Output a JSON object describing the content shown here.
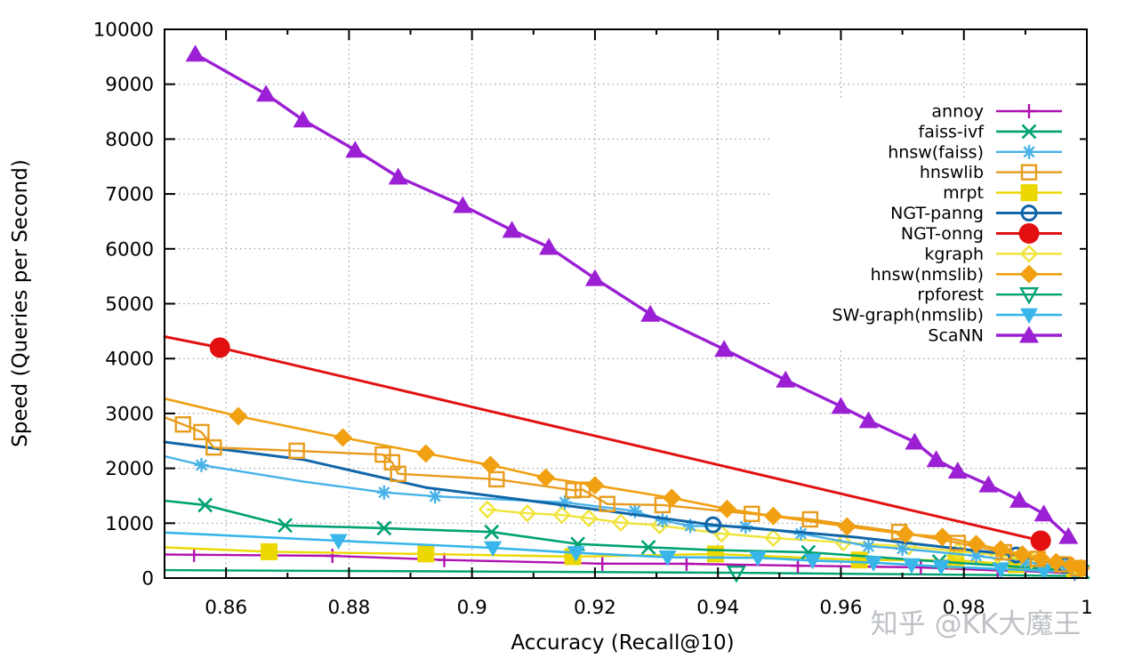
{
  "figure": {
    "xlabel": "Accuracy (Recall@10)",
    "ylabel": "Speed (Queries per Second)",
    "xlim": [
      0.85,
      1.0
    ],
    "ylim": [
      0,
      10000
    ],
    "x_ticks": [
      0.86,
      0.88,
      0.9,
      0.92,
      0.94,
      0.96,
      0.98,
      1
    ],
    "x_tick_labels": [
      "0.86",
      "0.88",
      "0.9",
      "0.92",
      "0.94",
      "0.96",
      "0.98",
      "1"
    ],
    "x_minor_ticks": [
      0.87,
      0.89,
      0.91,
      0.93,
      0.95,
      0.97,
      0.99
    ],
    "y_ticks": [
      0,
      1000,
      2000,
      3000,
      4000,
      5000,
      6000,
      7000,
      8000,
      9000,
      10000
    ],
    "grid": true,
    "grid_color": "#8a8a8a",
    "legend_position": "inside-top-right"
  },
  "watermark": "知乎 @KK大魔王",
  "chart_data": {
    "type": "line",
    "title": "",
    "xlabel": "Accuracy (Recall@10)",
    "ylabel": "Speed (Queries per Second)",
    "xlim": [
      0.85,
      1.0
    ],
    "ylim": [
      0,
      10000
    ],
    "draw_order": [
      "rpforest",
      "annoy",
      "mrpt",
      "faiss-ivf",
      "SW-graph(nmslib)",
      "kgraph",
      "hnsw(faiss)",
      "NGT-panng",
      "hnswlib",
      "hnsw(nmslib)",
      "NGT-onng",
      "ScaNN"
    ],
    "series": [
      {
        "name": "annoy",
        "color": "#b012b0",
        "marker": "plus",
        "lw": 2.4,
        "markers_mode": "skip-first",
        "line": [
          [
            0.85,
            430
          ],
          [
            0.8548,
            425
          ],
          [
            0.8773,
            405
          ],
          [
            0.8955,
            330
          ],
          [
            0.9212,
            262
          ],
          [
            0.9349,
            260
          ],
          [
            0.953,
            225
          ],
          [
            0.973,
            195
          ],
          [
            0.9855,
            140
          ],
          [
            0.993,
            115
          ],
          [
            0.998,
            80
          ]
        ]
      },
      {
        "name": "faiss-ivf",
        "color": "#00a273",
        "marker": "x",
        "lw": 2.6,
        "markers_mode": "custom",
        "line": [
          [
            0.85,
            1410
          ],
          [
            0.8566,
            1330
          ],
          [
            0.8696,
            960
          ],
          [
            0.8857,
            910
          ],
          [
            0.9032,
            840
          ],
          [
            0.9172,
            620
          ],
          [
            0.9287,
            560
          ],
          [
            0.9392,
            510
          ],
          [
            0.9547,
            470
          ],
          [
            0.976,
            300
          ],
          [
            0.9895,
            200
          ],
          [
            0.9993,
            110
          ]
        ],
        "marker_points": [
          [
            0.8566,
            1330
          ],
          [
            0.8696,
            960
          ],
          [
            0.8857,
            910
          ],
          [
            0.9032,
            840
          ],
          [
            0.9172,
            620
          ],
          [
            0.9287,
            560
          ],
          [
            0.9547,
            470
          ],
          [
            0.976,
            300
          ],
          [
            0.9993,
            110
          ]
        ]
      },
      {
        "name": "hnsw(faiss)",
        "color": "#48b2e8",
        "marker": "asterisk",
        "lw": 2.4,
        "markers_mode": "custom",
        "line": [
          [
            0.85,
            2220
          ],
          [
            0.856,
            2060
          ],
          [
            0.8725,
            1760
          ],
          [
            0.8857,
            1560
          ],
          [
            0.894,
            1490
          ],
          [
            0.9151,
            1380
          ],
          [
            0.9265,
            1220
          ],
          [
            0.931,
            1050
          ],
          [
            0.9355,
            950
          ],
          [
            0.9445,
            940
          ],
          [
            0.9535,
            810
          ],
          [
            0.9645,
            580
          ],
          [
            0.97,
            535
          ],
          [
            0.982,
            405
          ],
          [
            0.99,
            290
          ],
          [
            0.9965,
            200
          ]
        ],
        "marker_points": [
          [
            0.856,
            2060
          ],
          [
            0.8857,
            1560
          ],
          [
            0.894,
            1490
          ],
          [
            0.9151,
            1380
          ],
          [
            0.9265,
            1220
          ],
          [
            0.931,
            1050
          ],
          [
            0.9355,
            950
          ],
          [
            0.9445,
            940
          ],
          [
            0.9535,
            810
          ],
          [
            0.9645,
            580
          ],
          [
            0.97,
            535
          ],
          [
            0.982,
            405
          ],
          [
            0.99,
            290
          ],
          [
            0.9965,
            200
          ]
        ]
      },
      {
        "name": "hnswlib",
        "color": "#e89c1c",
        "marker": "square-open",
        "lw": 2.4,
        "markers_mode": "skip-first",
        "line": [
          [
            0.85,
            2930
          ],
          [
            0.853,
            2800
          ],
          [
            0.856,
            2660
          ],
          [
            0.858,
            2380
          ],
          [
            0.8715,
            2320
          ],
          [
            0.8855,
            2250
          ],
          [
            0.887,
            2110
          ],
          [
            0.888,
            1900
          ],
          [
            0.904,
            1800
          ],
          [
            0.9165,
            1600
          ],
          [
            0.918,
            1610
          ],
          [
            0.922,
            1350
          ],
          [
            0.931,
            1330
          ],
          [
            0.9455,
            1170
          ],
          [
            0.955,
            1070
          ],
          [
            0.9695,
            840
          ],
          [
            0.979,
            640
          ],
          [
            0.9865,
            470
          ],
          [
            0.992,
            350
          ],
          [
            0.996,
            250
          ],
          [
            0.9985,
            180
          ]
        ]
      },
      {
        "name": "mrpt",
        "color": "#ecd800",
        "marker": "square-filled",
        "lw": 2.4,
        "markers_mode": "skip-first",
        "line": [
          [
            0.85,
            560
          ],
          [
            0.867,
            480
          ],
          [
            0.8925,
            440
          ],
          [
            0.9164,
            390
          ],
          [
            0.9396,
            440
          ],
          [
            0.963,
            330
          ],
          [
            0.9787,
            325
          ],
          [
            0.9885,
            245
          ],
          [
            0.998,
            160
          ]
        ]
      },
      {
        "name": "NGT-panng",
        "color": "#1166a8",
        "marker": "circle-open",
        "lw": 3,
        "markers_mode": "custom",
        "line": [
          [
            0.85,
            2480
          ],
          [
            0.8725,
            2160
          ],
          [
            0.8925,
            1650
          ],
          [
            0.91,
            1400
          ],
          [
            0.9392,
            970
          ],
          [
            0.962,
            750
          ],
          [
            0.978,
            550
          ],
          [
            0.9885,
            420
          ],
          [
            0.9965,
            230
          ]
        ],
        "marker_points": [
          [
            0.9392,
            970
          ],
          [
            0.9885,
            420
          ],
          [
            0.9965,
            230
          ]
        ]
      },
      {
        "name": "NGT-onng",
        "color": "#e21010",
        "marker": "circle-filled",
        "lw": 3,
        "markers_mode": "custom",
        "line": [
          [
            0.85,
            4400
          ],
          [
            0.859,
            4200
          ],
          [
            0.9925,
            680
          ]
        ],
        "marker_points": [
          [
            0.859,
            4200
          ],
          [
            0.9925,
            680
          ]
        ]
      },
      {
        "name": "kgraph",
        "color": "#f0e43a",
        "marker": "diamond-open",
        "lw": 2.4,
        "markers_mode": "all",
        "line": [
          [
            0.9025,
            1250
          ],
          [
            0.909,
            1180
          ],
          [
            0.9146,
            1150
          ],
          [
            0.919,
            1090
          ],
          [
            0.9242,
            1010
          ],
          [
            0.9305,
            960
          ],
          [
            0.9406,
            810
          ],
          [
            0.949,
            730
          ],
          [
            0.9604,
            650
          ],
          [
            0.971,
            570
          ],
          [
            0.979,
            490
          ],
          [
            0.9855,
            420
          ],
          [
            0.991,
            330
          ],
          [
            0.9955,
            250
          ],
          [
            0.9985,
            180
          ]
        ]
      },
      {
        "name": "hnsw(nmslib)",
        "color": "#f0a011",
        "marker": "diamond-filled",
        "lw": 2.6,
        "markers_mode": "skip-first",
        "line": [
          [
            0.85,
            3270
          ],
          [
            0.862,
            2950
          ],
          [
            0.879,
            2560
          ],
          [
            0.8925,
            2270
          ],
          [
            0.903,
            2060
          ],
          [
            0.912,
            1830
          ],
          [
            0.92,
            1690
          ],
          [
            0.9325,
            1460
          ],
          [
            0.9415,
            1260
          ],
          [
            0.949,
            1130
          ],
          [
            0.961,
            940
          ],
          [
            0.9705,
            800
          ],
          [
            0.9765,
            750
          ],
          [
            0.982,
            620
          ],
          [
            0.986,
            520
          ],
          [
            0.9895,
            430
          ],
          [
            0.9925,
            360
          ],
          [
            0.995,
            290
          ],
          [
            0.9975,
            230
          ],
          [
            0.999,
            180
          ]
        ]
      },
      {
        "name": "rpforest",
        "color": "#00a273",
        "marker": "tri-down-open",
        "lw": 2.4,
        "markers_mode": "custom",
        "line": [
          [
            0.85,
            145
          ],
          [
            0.88,
            130
          ],
          [
            0.91,
            115
          ],
          [
            0.943,
            95
          ],
          [
            0.965,
            75
          ],
          [
            0.985,
            55
          ],
          [
            0.999,
            35
          ]
        ],
        "marker_points": [
          [
            0.943,
            95
          ]
        ]
      },
      {
        "name": "SW-graph(nmslib)",
        "color": "#38b6e9",
        "marker": "tri-down-filled",
        "lw": 2.6,
        "markers_mode": "skip-first",
        "line": [
          [
            0.85,
            830
          ],
          [
            0.8783,
            680
          ],
          [
            0.9034,
            550
          ],
          [
            0.9169,
            460
          ],
          [
            0.9318,
            380
          ],
          [
            0.9465,
            370
          ],
          [
            0.9554,
            320
          ],
          [
            0.9653,
            280
          ],
          [
            0.9715,
            240
          ],
          [
            0.9763,
            210
          ],
          [
            0.986,
            165
          ],
          [
            0.993,
            130
          ],
          [
            0.998,
            105
          ]
        ]
      },
      {
        "name": "ScaNN",
        "color": "#9b1fd3",
        "marker": "tri-up-filled",
        "lw": 3.4,
        "markers_mode": "all",
        "line": [
          [
            0.855,
            9550
          ],
          [
            0.8665,
            8820
          ],
          [
            0.8725,
            8350
          ],
          [
            0.881,
            7800
          ],
          [
            0.888,
            7310
          ],
          [
            0.8985,
            6790
          ],
          [
            0.9065,
            6340
          ],
          [
            0.9125,
            6030
          ],
          [
            0.92,
            5460
          ],
          [
            0.929,
            4810
          ],
          [
            0.941,
            4170
          ],
          [
            0.951,
            3610
          ],
          [
            0.96,
            3130
          ],
          [
            0.9645,
            2870
          ],
          [
            0.972,
            2480
          ],
          [
            0.9755,
            2160
          ],
          [
            0.979,
            1950
          ],
          [
            0.984,
            1700
          ],
          [
            0.989,
            1420
          ],
          [
            0.993,
            1170
          ],
          [
            0.997,
            760
          ]
        ]
      }
    ]
  }
}
